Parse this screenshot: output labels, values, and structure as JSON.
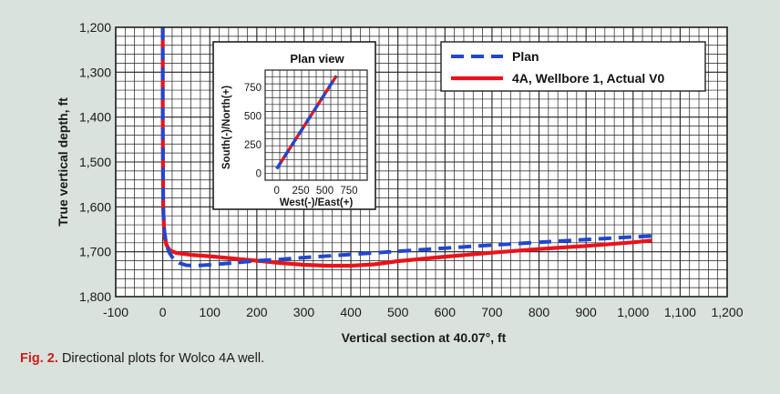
{
  "caption": {
    "label": "Fig. 2.",
    "text": "Directional plots for Wolco 4A well."
  },
  "colors": {
    "background": "#d9e2dc",
    "plan": "#2147cc",
    "actual": "#e8141b",
    "grid": "#1f1f1f"
  },
  "chart_data": [
    {
      "type": "line",
      "title": "",
      "xlabel": "Vertical section at 40.07°, ft",
      "ylabel": "True vertical depth, ft",
      "xlim": [
        -100,
        1200
      ],
      "ylim": [
        1200,
        1800
      ],
      "y_inverted": true,
      "grid": true,
      "legend_position": "top-right",
      "x_ticks": [
        "-100",
        "0",
        "100",
        "200",
        "300",
        "400",
        "500",
        "600",
        "700",
        "800",
        "900",
        "1,000",
        "1,100",
        "1,200"
      ],
      "y_ticks": [
        "1,200",
        "1,300",
        "1,400",
        "1,500",
        "1,600",
        "1,700",
        "1,800"
      ],
      "series": [
        {
          "name": "Plan",
          "style": "dashed",
          "color": "#2147cc",
          "x": [
            0,
            0,
            1,
            3,
            7,
            13,
            22,
            35,
            50,
            70,
            100,
            150,
            200,
            250,
            300,
            400,
            500,
            600,
            700,
            800,
            900,
            1000,
            1040
          ],
          "y": [
            1200,
            1400,
            1600,
            1650,
            1680,
            1700,
            1715,
            1725,
            1730,
            1731,
            1729,
            1725,
            1720,
            1717,
            1713,
            1706,
            1699,
            1692,
            1685,
            1679,
            1673,
            1667,
            1665
          ]
        },
        {
          "name": "4A, Wellbore 1, Actual V0",
          "style": "solid",
          "color": "#e8141b",
          "x": [
            0,
            0,
            1,
            3,
            8,
            15,
            30,
            60,
            100,
            150,
            200,
            250,
            300,
            350,
            400,
            450,
            500,
            600,
            700,
            800,
            900,
            1000,
            1040
          ],
          "y": [
            1200,
            1400,
            1600,
            1660,
            1685,
            1697,
            1703,
            1707,
            1710,
            1715,
            1720,
            1725,
            1729,
            1731,
            1731,
            1728,
            1721,
            1711,
            1702,
            1694,
            1687,
            1679,
            1675
          ]
        }
      ]
    },
    {
      "type": "line",
      "title": "Plan view",
      "xlabel": "West(-)/East(+)",
      "ylabel": "South(-)/North(+)",
      "xlim": [
        -120,
        940
      ],
      "ylim": [
        -60,
        900
      ],
      "grid": true,
      "x_ticks": [
        "0",
        "250",
        "500",
        "750"
      ],
      "y_ticks": [
        "0",
        "250",
        "500",
        "750"
      ],
      "series": [
        {
          "name": "Plan",
          "style": "dashed",
          "color": "#2147cc",
          "x": [
            0,
            620
          ],
          "y": [
            40,
            850
          ]
        },
        {
          "name": "4A, Wellbore 1, Actual V0",
          "style": "solid",
          "color": "#e8141b",
          "x": [
            0,
            620
          ],
          "y": [
            40,
            850
          ]
        }
      ]
    }
  ]
}
